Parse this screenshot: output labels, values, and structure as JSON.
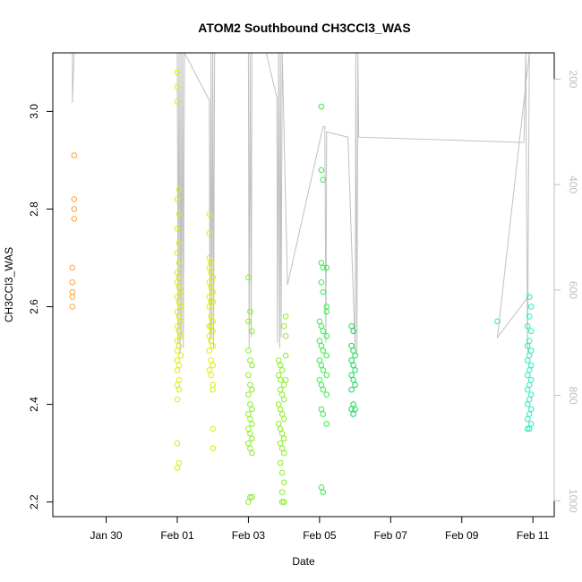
{
  "chart_data": {
    "type": "scatter",
    "title": "ATOM2 Southbound CH3CCl3_WAS",
    "xlabel": "Date",
    "ylabel": "CH3CCl3_WAS",
    "x_unit": "days since Jan 30",
    "xlim": [
      -1.5,
      12.6
    ],
    "ylim": [
      2.17,
      3.12
    ],
    "x_ticks": [
      {
        "label": "Jan 30",
        "value": 0
      },
      {
        "label": "Feb 01",
        "value": 2
      },
      {
        "label": "Feb 03",
        "value": 4
      },
      {
        "label": "Feb 05",
        "value": 6
      },
      {
        "label": "Feb 07",
        "value": 8
      },
      {
        "label": "Feb 09",
        "value": 10
      },
      {
        "label": "Feb 11",
        "value": 12
      }
    ],
    "y_ticks": [
      2.2,
      2.4,
      2.6,
      2.8,
      3.0
    ],
    "right_axis": {
      "label": "",
      "color": "#bebebe",
      "ticks": [
        200,
        400,
        600,
        800,
        1000
      ],
      "range_top_to_bottom": [
        150,
        1030
      ]
    },
    "grid": false,
    "legend": "none",
    "series": [
      {
        "color": "#ffa040",
        "points": [
          [
            -0.9,
            2.91
          ],
          [
            -0.9,
            2.82
          ],
          [
            -0.9,
            2.8
          ],
          [
            -0.9,
            2.78
          ],
          [
            -0.95,
            2.68
          ],
          [
            -0.95,
            2.65
          ],
          [
            -0.95,
            2.63
          ],
          [
            -0.95,
            2.62
          ],
          [
            -0.95,
            2.6
          ]
        ]
      },
      {
        "color": "#ddee00",
        "points": [
          [
            2.0,
            3.08
          ],
          [
            2.0,
            3.05
          ],
          [
            2.0,
            3.02
          ],
          [
            2.05,
            2.84
          ],
          [
            2.0,
            2.82
          ],
          [
            2.05,
            2.79
          ],
          [
            2.0,
            2.76
          ],
          [
            2.05,
            2.73
          ],
          [
            2.0,
            2.71
          ],
          [
            2.05,
            2.69
          ],
          [
            2.0,
            2.67
          ],
          [
            2.05,
            2.66
          ],
          [
            2.0,
            2.65
          ],
          [
            2.05,
            2.64
          ],
          [
            2.1,
            2.63
          ],
          [
            2.0,
            2.62
          ],
          [
            2.05,
            2.61
          ],
          [
            2.1,
            2.6
          ],
          [
            2.0,
            2.59
          ],
          [
            2.05,
            2.58
          ],
          [
            2.1,
            2.57
          ],
          [
            2.0,
            2.56
          ],
          [
            2.05,
            2.55
          ],
          [
            2.1,
            2.54
          ],
          [
            2.0,
            2.53
          ],
          [
            2.05,
            2.52
          ],
          [
            2.0,
            2.51
          ],
          [
            2.1,
            2.5
          ],
          [
            2.0,
            2.49
          ],
          [
            2.05,
            2.48
          ],
          [
            2.0,
            2.47
          ],
          [
            2.05,
            2.45
          ],
          [
            2.0,
            2.44
          ],
          [
            2.05,
            2.43
          ],
          [
            2.0,
            2.41
          ],
          [
            2.0,
            2.32
          ],
          [
            2.05,
            2.28
          ],
          [
            2.0,
            2.27
          ],
          [
            2.9,
            2.79
          ],
          [
            2.9,
            2.75
          ],
          [
            2.9,
            2.7
          ],
          [
            2.95,
            2.69
          ],
          [
            2.9,
            2.68
          ],
          [
            2.95,
            2.67
          ],
          [
            3.0,
            2.66
          ],
          [
            2.9,
            2.65
          ],
          [
            2.95,
            2.64
          ],
          [
            3.0,
            2.63
          ],
          [
            2.9,
            2.62
          ],
          [
            2.95,
            2.61
          ],
          [
            3.0,
            2.61
          ],
          [
            2.9,
            2.6
          ],
          [
            2.95,
            2.58
          ],
          [
            3.0,
            2.57
          ],
          [
            2.9,
            2.56
          ],
          [
            2.95,
            2.56
          ],
          [
            3.0,
            2.55
          ],
          [
            2.9,
            2.54
          ],
          [
            2.95,
            2.53
          ],
          [
            3.0,
            2.52
          ],
          [
            2.9,
            2.51
          ],
          [
            2.95,
            2.49
          ],
          [
            3.0,
            2.48
          ],
          [
            2.9,
            2.47
          ],
          [
            2.95,
            2.46
          ],
          [
            3.0,
            2.44
          ],
          [
            3.0,
            2.43
          ],
          [
            3.0,
            2.35
          ],
          [
            3.0,
            2.31
          ]
        ]
      },
      {
        "color": "#88ee22",
        "points": [
          [
            4.0,
            2.66
          ],
          [
            4.05,
            2.59
          ],
          [
            4.0,
            2.57
          ],
          [
            4.1,
            2.55
          ],
          [
            4.0,
            2.51
          ],
          [
            4.05,
            2.49
          ],
          [
            4.1,
            2.48
          ],
          [
            4.0,
            2.46
          ],
          [
            4.05,
            2.44
          ],
          [
            4.1,
            2.43
          ],
          [
            4.0,
            2.42
          ],
          [
            4.05,
            2.4
          ],
          [
            4.1,
            2.39
          ],
          [
            4.0,
            2.38
          ],
          [
            4.05,
            2.37
          ],
          [
            4.1,
            2.36
          ],
          [
            4.0,
            2.35
          ],
          [
            4.05,
            2.34
          ],
          [
            4.1,
            2.33
          ],
          [
            4.0,
            2.32
          ],
          [
            4.05,
            2.31
          ],
          [
            4.1,
            2.3
          ],
          [
            4.05,
            2.21
          ],
          [
            4.1,
            2.21
          ],
          [
            4.0,
            2.2
          ],
          [
            4.85,
            2.49
          ],
          [
            4.9,
            2.48
          ],
          [
            4.95,
            2.47
          ],
          [
            4.85,
            2.46
          ],
          [
            4.9,
            2.45
          ],
          [
            5.0,
            2.44
          ],
          [
            5.05,
            2.58
          ],
          [
            5.0,
            2.56
          ],
          [
            5.05,
            2.54
          ],
          [
            4.9,
            2.43
          ],
          [
            4.95,
            2.42
          ],
          [
            5.0,
            2.41
          ],
          [
            4.85,
            2.4
          ],
          [
            4.9,
            2.39
          ],
          [
            4.95,
            2.38
          ],
          [
            5.0,
            2.37
          ],
          [
            4.85,
            2.36
          ],
          [
            4.9,
            2.35
          ],
          [
            4.95,
            2.34
          ],
          [
            5.0,
            2.33
          ],
          [
            4.9,
            2.32
          ],
          [
            4.95,
            2.31
          ],
          [
            5.0,
            2.3
          ],
          [
            4.9,
            2.28
          ],
          [
            4.95,
            2.26
          ],
          [
            5.0,
            2.24
          ],
          [
            4.95,
            2.22
          ],
          [
            4.95,
            2.2
          ],
          [
            5.0,
            2.2
          ],
          [
            5.05,
            2.5
          ],
          [
            5.05,
            2.45
          ]
        ]
      },
      {
        "color": "#33ee44",
        "points": [
          [
            6.05,
            3.01
          ],
          [
            6.05,
            2.88
          ],
          [
            6.1,
            2.86
          ],
          [
            6.05,
            2.69
          ],
          [
            6.1,
            2.68
          ],
          [
            6.2,
            2.68
          ],
          [
            6.05,
            2.65
          ],
          [
            6.1,
            2.63
          ],
          [
            6.2,
            2.6
          ],
          [
            6.2,
            2.59
          ],
          [
            6.0,
            2.57
          ],
          [
            6.05,
            2.56
          ],
          [
            6.1,
            2.55
          ],
          [
            6.2,
            2.54
          ],
          [
            6.0,
            2.53
          ],
          [
            6.05,
            2.52
          ],
          [
            6.1,
            2.51
          ],
          [
            6.2,
            2.5
          ],
          [
            6.0,
            2.49
          ],
          [
            6.05,
            2.48
          ],
          [
            6.1,
            2.47
          ],
          [
            6.2,
            2.46
          ],
          [
            6.0,
            2.45
          ],
          [
            6.05,
            2.44
          ],
          [
            6.1,
            2.43
          ],
          [
            6.2,
            2.42
          ],
          [
            6.05,
            2.39
          ],
          [
            6.1,
            2.38
          ],
          [
            6.2,
            2.36
          ],
          [
            6.05,
            2.23
          ],
          [
            6.1,
            2.22
          ]
        ]
      },
      {
        "color": "#11dd55",
        "points": [
          [
            6.9,
            2.56
          ],
          [
            6.95,
            2.55
          ],
          [
            6.9,
            2.52
          ],
          [
            6.95,
            2.51
          ],
          [
            7.0,
            2.5
          ],
          [
            6.9,
            2.49
          ],
          [
            6.95,
            2.48
          ],
          [
            7.0,
            2.47
          ],
          [
            6.9,
            2.46
          ],
          [
            6.95,
            2.45
          ],
          [
            7.0,
            2.44
          ],
          [
            6.9,
            2.43
          ],
          [
            6.95,
            2.4
          ],
          [
            7.0,
            2.39
          ],
          [
            6.9,
            2.39
          ],
          [
            6.95,
            2.38
          ]
        ]
      },
      {
        "color": "#22eebb",
        "points": [
          [
            11.0,
            2.57
          ],
          [
            11.9,
            2.62
          ],
          [
            11.95,
            2.6
          ],
          [
            11.9,
            2.58
          ],
          [
            11.85,
            2.56
          ],
          [
            11.95,
            2.55
          ],
          [
            11.9,
            2.53
          ],
          [
            11.85,
            2.52
          ],
          [
            11.95,
            2.51
          ],
          [
            11.9,
            2.5
          ],
          [
            11.85,
            2.49
          ],
          [
            11.95,
            2.48
          ],
          [
            11.9,
            2.47
          ],
          [
            11.85,
            2.46
          ],
          [
            11.95,
            2.45
          ],
          [
            11.9,
            2.44
          ],
          [
            11.85,
            2.43
          ],
          [
            11.95,
            2.42
          ],
          [
            11.9,
            2.41
          ],
          [
            11.85,
            2.4
          ],
          [
            11.95,
            2.39
          ],
          [
            11.9,
            2.38
          ],
          [
            11.85,
            2.37
          ],
          [
            11.95,
            2.36
          ],
          [
            11.9,
            2.35
          ],
          [
            11.85,
            2.35
          ]
        ]
      }
    ],
    "altitude_track": {
      "color": "#c0c0c0",
      "points": [
        [
          -0.95,
          150
        ],
        [
          -0.95,
          245
        ],
        [
          -0.9,
          150
        ],
        [
          0.3,
          150
        ],
        [
          1.8,
          150
        ],
        [
          2.0,
          150
        ],
        [
          2.0,
          150
        ],
        [
          2.02,
          700
        ],
        [
          2.05,
          150
        ],
        [
          2.08,
          720
        ],
        [
          2.1,
          150
        ],
        [
          2.12,
          690
        ],
        [
          2.15,
          150
        ],
        [
          2.17,
          710
        ],
        [
          2.2,
          150
        ],
        [
          2.9,
          240
        ],
        [
          2.92,
          700
        ],
        [
          2.95,
          150
        ],
        [
          2.97,
          690
        ],
        [
          3.0,
          150
        ],
        [
          3.02,
          710
        ],
        [
          3.05,
          150
        ],
        [
          3.8,
          150
        ],
        [
          4.0,
          150
        ],
        [
          4.02,
          710
        ],
        [
          4.05,
          150
        ],
        [
          4.08,
          690
        ],
        [
          4.1,
          150
        ],
        [
          4.5,
          150
        ],
        [
          4.8,
          235
        ],
        [
          4.82,
          700
        ],
        [
          4.85,
          150
        ],
        [
          4.88,
          710
        ],
        [
          4.9,
          150
        ],
        [
          4.92,
          690
        ],
        [
          4.95,
          150
        ],
        [
          5.1,
          590
        ],
        [
          6.1,
          290
        ],
        [
          6.15,
          290
        ],
        [
          6.18,
          700
        ],
        [
          6.2,
          300
        ],
        [
          6.8,
          310
        ],
        [
          7.0,
          710
        ],
        [
          7.02,
          150
        ],
        [
          7.05,
          720
        ],
        [
          7.08,
          150
        ],
        [
          7.1,
          310
        ],
        [
          11.75,
          320
        ],
        [
          11.8,
          150
        ],
        [
          11.85,
          720
        ],
        [
          11.9,
          150
        ],
        [
          11.0,
          690
        ],
        [
          11.9,
          610
        ]
      ]
    }
  }
}
